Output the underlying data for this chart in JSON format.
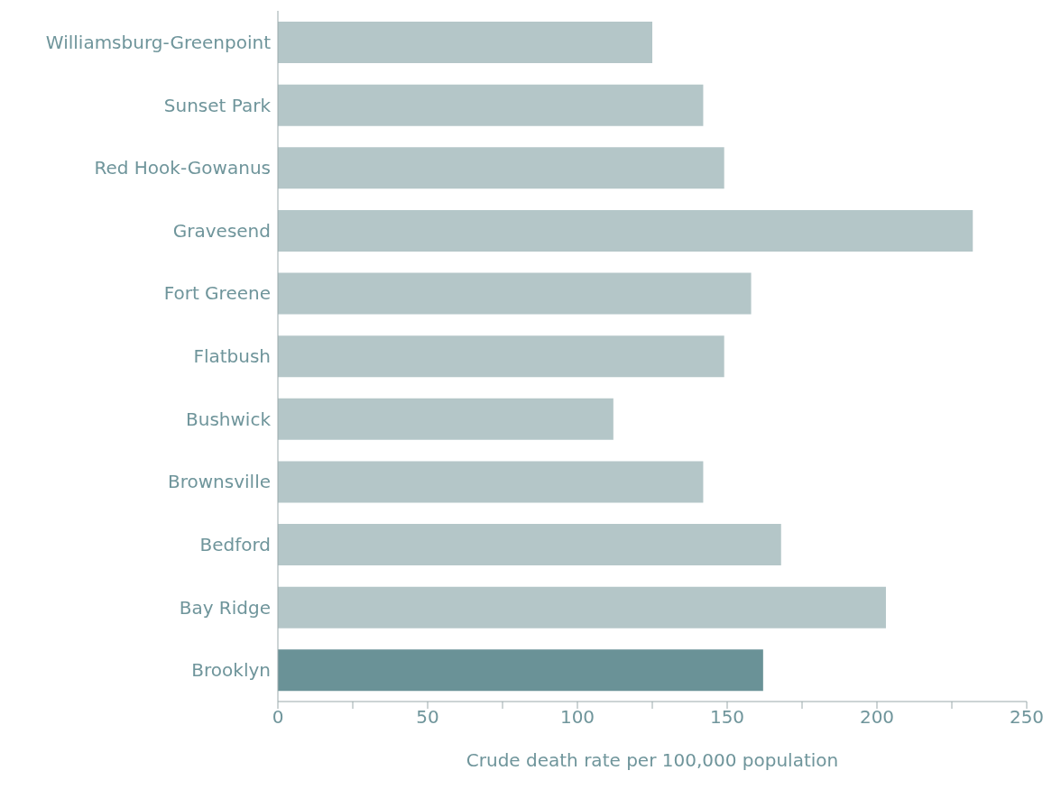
{
  "chart_data": {
    "type": "bar",
    "orientation": "horizontal",
    "xlabel": "Crude death rate per 100,000 population",
    "categories": [
      "Williamsburg-Greenpoint",
      "Sunset Park",
      "Red Hook-Gowanus",
      "Gravesend",
      "Fort Greene",
      "Flatbush",
      "Bushwick",
      "Brownsville",
      "Bedford",
      "Bay Ridge",
      "Brooklyn"
    ],
    "values": [
      125,
      142,
      149,
      232,
      158,
      149,
      112,
      142,
      168,
      203,
      162
    ],
    "colors": [
      "#b4c6c8",
      "#b4c6c8",
      "#b4c6c8",
      "#b4c6c8",
      "#b4c6c8",
      "#b4c6c8",
      "#b4c6c8",
      "#b4c6c8",
      "#b4c6c8",
      "#b4c6c8",
      "#6a9297"
    ],
    "xlim": [
      0,
      250
    ],
    "xticks": [
      0,
      {
        "value": 25,
        "label": null
      },
      50,
      {
        "value": 75,
        "label": null
      },
      100,
      {
        "value": 125,
        "label": null
      },
      150,
      {
        "value": 175,
        "label": null
      },
      200,
      {
        "value": 225,
        "label": null
      },
      250
    ],
    "grid": false,
    "legend": false
  }
}
